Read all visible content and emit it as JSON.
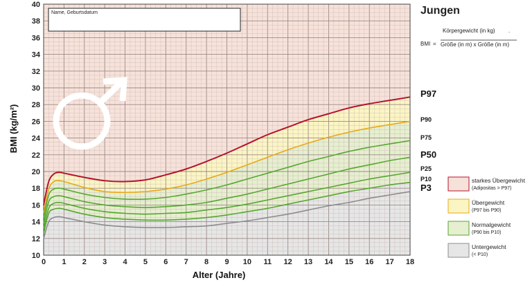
{
  "chart_data": {
    "type": "line",
    "title": "Jungen",
    "xlabel": "Alter (Jahre)",
    "ylabel": "BMI (kg/m²)",
    "xlim": [
      0,
      18
    ],
    "ylim": [
      10,
      40
    ],
    "x_ticks": [
      "0",
      "1",
      "2",
      "3",
      "4",
      "5",
      "6",
      "7",
      "8",
      "9",
      "10",
      "11",
      "12",
      "13",
      "14",
      "15",
      "16",
      "17",
      "18"
    ],
    "y_ticks": [
      "10",
      "12",
      "14",
      "16",
      "18",
      "20",
      "22",
      "24",
      "26",
      "28",
      "30",
      "32",
      "34",
      "36",
      "38",
      "40"
    ],
    "grid": true,
    "x": [
      0,
      0.25,
      0.5,
      0.75,
      1,
      2,
      3,
      4,
      5,
      6,
      7,
      8,
      9,
      10,
      11,
      12,
      13,
      14,
      15,
      16,
      17,
      18
    ],
    "series": [
      {
        "name": "P97",
        "color": "#b5122d",
        "values": [
          16.0,
          18.8,
          19.7,
          19.9,
          19.8,
          19.3,
          18.9,
          18.8,
          19.0,
          19.6,
          20.3,
          21.2,
          22.2,
          23.3,
          24.4,
          25.3,
          26.2,
          26.9,
          27.6,
          28.1,
          28.5,
          28.9
        ]
      },
      {
        "name": "P90",
        "color": "#e8a817",
        "values": [
          15.0,
          17.9,
          18.8,
          18.9,
          18.8,
          18.1,
          17.6,
          17.5,
          17.6,
          17.9,
          18.4,
          19.1,
          19.9,
          20.8,
          21.7,
          22.6,
          23.4,
          24.1,
          24.7,
          25.2,
          25.6,
          26.0
        ]
      },
      {
        "name": "P75",
        "color": "#56a632",
        "values": [
          14.5,
          17.2,
          17.9,
          18.0,
          17.9,
          17.3,
          16.9,
          16.7,
          16.7,
          16.9,
          17.3,
          17.8,
          18.4,
          19.1,
          19.8,
          20.5,
          21.2,
          21.8,
          22.4,
          22.9,
          23.3,
          23.7
        ]
      },
      {
        "name": "P50",
        "color": "#56a632",
        "values": [
          13.8,
          16.4,
          17.0,
          17.1,
          17.0,
          16.4,
          16.0,
          15.8,
          15.7,
          15.8,
          16.0,
          16.3,
          16.8,
          17.3,
          17.9,
          18.5,
          19.1,
          19.7,
          20.3,
          20.8,
          21.3,
          21.7
        ]
      },
      {
        "name": "P25",
        "color": "#56a632",
        "values": [
          13.2,
          15.6,
          16.2,
          16.3,
          16.2,
          15.6,
          15.2,
          15.0,
          14.9,
          15.0,
          15.1,
          15.4,
          15.7,
          16.1,
          16.6,
          17.1,
          17.6,
          18.1,
          18.6,
          19.1,
          19.5,
          19.9
        ]
      },
      {
        "name": "P10",
        "color": "#56a632",
        "values": [
          12.6,
          15.0,
          15.5,
          15.6,
          15.5,
          14.9,
          14.5,
          14.3,
          14.2,
          14.2,
          14.3,
          14.5,
          14.8,
          15.2,
          15.6,
          16.1,
          16.6,
          17.1,
          17.6,
          18.0,
          18.4,
          18.7
        ]
      },
      {
        "name": "P3",
        "color": "#8c8c8c",
        "values": [
          12.0,
          14.0,
          14.5,
          14.6,
          14.5,
          14.0,
          13.6,
          13.4,
          13.3,
          13.3,
          13.4,
          13.5,
          13.8,
          14.1,
          14.5,
          14.9,
          15.4,
          15.9,
          16.3,
          16.8,
          17.2,
          17.6
        ]
      }
    ],
    "bands": {
      "above_p97": "#f7e2da",
      "p90_to_p97": "#fbf5c4",
      "p10_to_p90": "#e6efcf",
      "below_p10": "#e6e6e6"
    }
  },
  "name_box": {
    "label": "Name, Geburtsdatum"
  },
  "formula": {
    "prefix": "BMI",
    "equals": "=",
    "numerator": "Körpergewicht (in kg)",
    "denominator": "Größe (in m) x Größe (in m)"
  },
  "legend": [
    {
      "title": "starkes Übergewicht",
      "sub": "(Adipositas > P97)",
      "fill": "#f7e2da",
      "border": "#b5122d"
    },
    {
      "title": "Übergewicht",
      "sub": "(P97 bis P90)",
      "fill": "#fbf5c4",
      "border": "#e8a817"
    },
    {
      "title": "Normalgewicht",
      "sub": "(P90 bis P10)",
      "fill": "#e6efcf",
      "border": "#56a632"
    },
    {
      "title": "Untergewicht",
      "sub": "(< P10)",
      "fill": "#e6e6e6",
      "border": "#8c8c8c"
    }
  ],
  "icons": {
    "gender": "male-symbol-icon"
  }
}
